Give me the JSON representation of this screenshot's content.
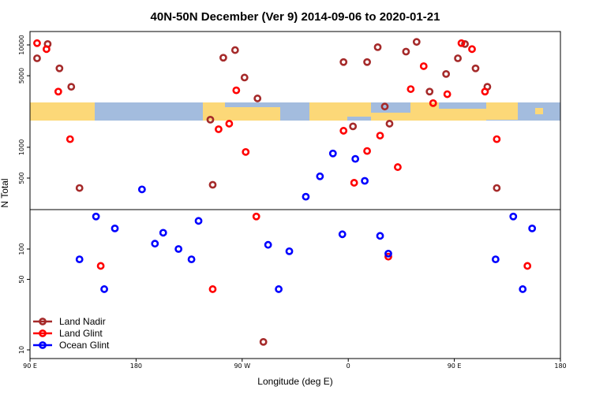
{
  "chart_data": {
    "type": "scatter",
    "title": "40N-50N December (Ver 9)   2014-09-06 to 2020-01-21",
    "xlabel": "Longitude (deg E)",
    "ylabel": "N Total",
    "x_ticks": [
      {
        "value": 90,
        "label": "90 E"
      },
      {
        "value": 180,
        "label": "180"
      },
      {
        "value": 270,
        "label": "90 W"
      },
      {
        "value": 360,
        "label": "0"
      },
      {
        "value": 450,
        "label": "90 E"
      },
      {
        "value": 540,
        "label": "180"
      }
    ],
    "xlim": [
      90,
      540
    ],
    "upper_panel": {
      "scale": "log",
      "y_ticks": [
        500,
        1000,
        5000,
        10000
      ],
      "map_band": "world map strip (land / ocean)"
    },
    "lower_panel": {
      "scale": "log",
      "y_ticks": [
        10,
        50,
        100
      ]
    },
    "colors": {
      "land_nadir": "#a52a2a",
      "land_glint": "#ff0000",
      "ocean_glint": "#0000ff",
      "map_ocean": "#a3bcde",
      "map_land": "#fcd878"
    },
    "legend_position": "bottom-left",
    "series": [
      {
        "name": "Land Nadir",
        "points": [
          [
            96,
            7400
          ],
          [
            105,
            10200
          ],
          [
            115,
            5900
          ],
          [
            125,
            3900
          ],
          [
            132,
            400
          ],
          [
            243,
            1860
          ],
          [
            245,
            430
          ],
          [
            254,
            7500
          ],
          [
            264,
            8900
          ],
          [
            272,
            4800
          ],
          [
            283,
            3000
          ],
          [
            288,
            12
          ],
          [
            356,
            6800
          ],
          [
            364,
            1600
          ],
          [
            376,
            6800
          ],
          [
            385,
            9500
          ],
          [
            391,
            2500
          ],
          [
            395,
            1700
          ],
          [
            409,
            8600
          ],
          [
            418,
            10700
          ],
          [
            429,
            3500
          ],
          [
            443,
            5200
          ],
          [
            453,
            7400
          ],
          [
            459,
            10200
          ],
          [
            468,
            5900
          ],
          [
            478,
            3900
          ],
          [
            486,
            400
          ]
        ]
      },
      {
        "name": "Land Glint",
        "points": [
          [
            96,
            10400
          ],
          [
            104,
            9100
          ],
          [
            114,
            3500
          ],
          [
            124,
            1200
          ],
          [
            150,
            68
          ],
          [
            245,
            40
          ],
          [
            250,
            1500
          ],
          [
            259,
            1700
          ],
          [
            265,
            3600
          ],
          [
            273,
            900
          ],
          [
            282,
            210
          ],
          [
            356,
            1450
          ],
          [
            365,
            450
          ],
          [
            376,
            920
          ],
          [
            387,
            1300
          ],
          [
            394,
            84
          ],
          [
            402,
            640
          ],
          [
            413,
            3700
          ],
          [
            424,
            6200
          ],
          [
            432,
            2700
          ],
          [
            444,
            3300
          ],
          [
            456,
            10400
          ],
          [
            465,
            9100
          ],
          [
            476,
            3500
          ],
          [
            486,
            1200
          ],
          [
            512,
            68
          ]
        ]
      },
      {
        "name": "Ocean Glint",
        "points": [
          [
            132,
            79
          ],
          [
            146,
            210
          ],
          [
            153,
            40
          ],
          [
            162,
            160
          ],
          [
            185,
            390
          ],
          [
            196,
            113
          ],
          [
            203,
            145
          ],
          [
            216,
            100
          ],
          [
            227,
            79
          ],
          [
            233,
            190
          ],
          [
            292,
            110
          ],
          [
            301,
            40
          ],
          [
            310,
            95
          ],
          [
            324,
            330
          ],
          [
            336,
            520
          ],
          [
            347,
            870
          ],
          [
            355,
            140
          ],
          [
            366,
            770
          ],
          [
            374,
            470
          ],
          [
            387,
            135
          ],
          [
            394,
            90
          ],
          [
            485,
            79
          ],
          [
            500,
            210
          ],
          [
            508,
            40
          ],
          [
            516,
            160
          ]
        ]
      }
    ]
  }
}
